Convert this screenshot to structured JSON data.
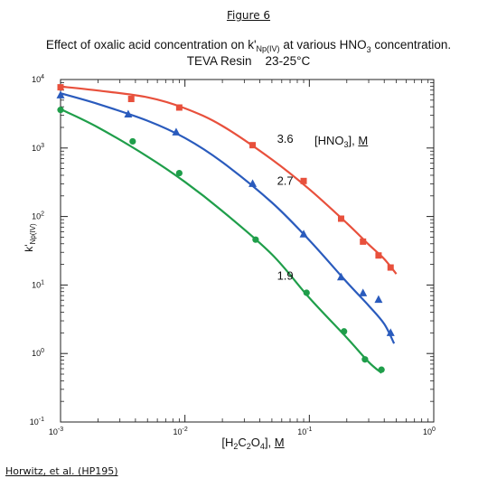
{
  "figure_label": "Figure 6",
  "credit": "Horwitz, et al. (HP195)",
  "chart_data": {
    "type": "scatter",
    "title": {
      "part1": "Effect of oxalic acid concentration on k'",
      "part1_sub": "Np(IV)",
      "part2": " at various HNO",
      "part2_sub": "3",
      "part3": " concentration."
    },
    "subtitle": "TEVA Resin    23-25°C",
    "xlabel": {
      "open": "[H",
      "s1": "2",
      "c": "C",
      "s2": "2",
      "o": "O",
      "s3": "4",
      "close": "], ",
      "unit": "M"
    },
    "ylabel": {
      "main": "k'",
      "sub": "Np(IV)"
    },
    "x_scale": "log",
    "y_scale": "log",
    "xlim": [
      0.001,
      1
    ],
    "ylim": [
      0.1,
      10000
    ],
    "x_tick_values": [
      0.001,
      0.01,
      0.1,
      1
    ],
    "x_tick_labels": [
      {
        "base": "10",
        "exp": "-3"
      },
      {
        "base": "10",
        "exp": "-2"
      },
      {
        "base": "10",
        "exp": "-1"
      },
      {
        "base": "10",
        "exp": "0"
      }
    ],
    "y_tick_values": [
      0.1,
      1,
      10,
      100,
      1000,
      10000
    ],
    "y_tick_labels": [
      {
        "base": "10",
        "exp": "-1"
      },
      {
        "base": "10",
        "exp": "0"
      },
      {
        "base": "10",
        "exp": "1"
      },
      {
        "base": "10",
        "exp": "2"
      },
      {
        "base": "10",
        "exp": "3"
      },
      {
        "base": "10",
        "exp": "4"
      }
    ],
    "grid": false,
    "legend": {
      "title_prefix": "[HNO",
      "title_sub": "3",
      "title_suffix": "], ",
      "title_unit": "M",
      "placement": "top-right"
    },
    "series": [
      {
        "name": "3.6",
        "color": "#e8503c",
        "marker": "square",
        "x": [
          0.001,
          0.0037,
          0.009,
          0.035,
          0.09,
          0.18,
          0.27,
          0.36,
          0.45
        ],
        "y": [
          7700,
          5200,
          3900,
          1100,
          330,
          93,
          43,
          27,
          18
        ]
      },
      {
        "name": "2.7",
        "color": "#2a5bbd",
        "marker": "triangle",
        "x": [
          0.001,
          0.0035,
          0.0085,
          0.035,
          0.09,
          0.18,
          0.27,
          0.36,
          0.45
        ],
        "y": [
          5900,
          3100,
          1700,
          300,
          55,
          13,
          7.6,
          6.1,
          2.0
        ]
      },
      {
        "name": "1.9",
        "color": "#1f9e4a",
        "marker": "circle",
        "x": [
          0.001,
          0.0038,
          0.009,
          0.037,
          0.095,
          0.19,
          0.28,
          0.38
        ],
        "y": [
          3600,
          1250,
          430,
          46,
          7.7,
          2.1,
          0.82,
          0.58
        ]
      }
    ],
    "fits": [
      {
        "series": "3.6",
        "color": "#e8503c",
        "x": [
          0.001,
          0.002,
          0.005,
          0.01,
          0.02,
          0.05,
          0.1,
          0.2,
          0.3,
          0.4,
          0.5
        ],
        "y": [
          7900,
          6900,
          5500,
          3800,
          2100,
          680,
          250,
          80,
          39,
          24,
          14.5
        ]
      },
      {
        "series": "2.7",
        "color": "#2a5bbd",
        "x": [
          0.001,
          0.002,
          0.005,
          0.01,
          0.02,
          0.05,
          0.1,
          0.2,
          0.3,
          0.4,
          0.48
        ],
        "y": [
          6300,
          4400,
          2500,
          1400,
          620,
          160,
          45,
          11,
          5,
          2.7,
          1.4
        ]
      },
      {
        "series": "1.9",
        "color": "#1f9e4a",
        "x": [
          0.001,
          0.002,
          0.005,
          0.01,
          0.02,
          0.05,
          0.1,
          0.2,
          0.3,
          0.38
        ],
        "y": [
          3700,
          2000,
          750,
          320,
          120,
          28,
          6.5,
          1.7,
          0.75,
          0.52
        ]
      }
    ],
    "curve_labels": [
      {
        "text": "3.6",
        "x": 0.055,
        "y": 1200
      },
      {
        "text": "2.7",
        "x": 0.055,
        "y": 290
      },
      {
        "text": "1.9",
        "x": 0.055,
        "y": 12
      }
    ]
  }
}
